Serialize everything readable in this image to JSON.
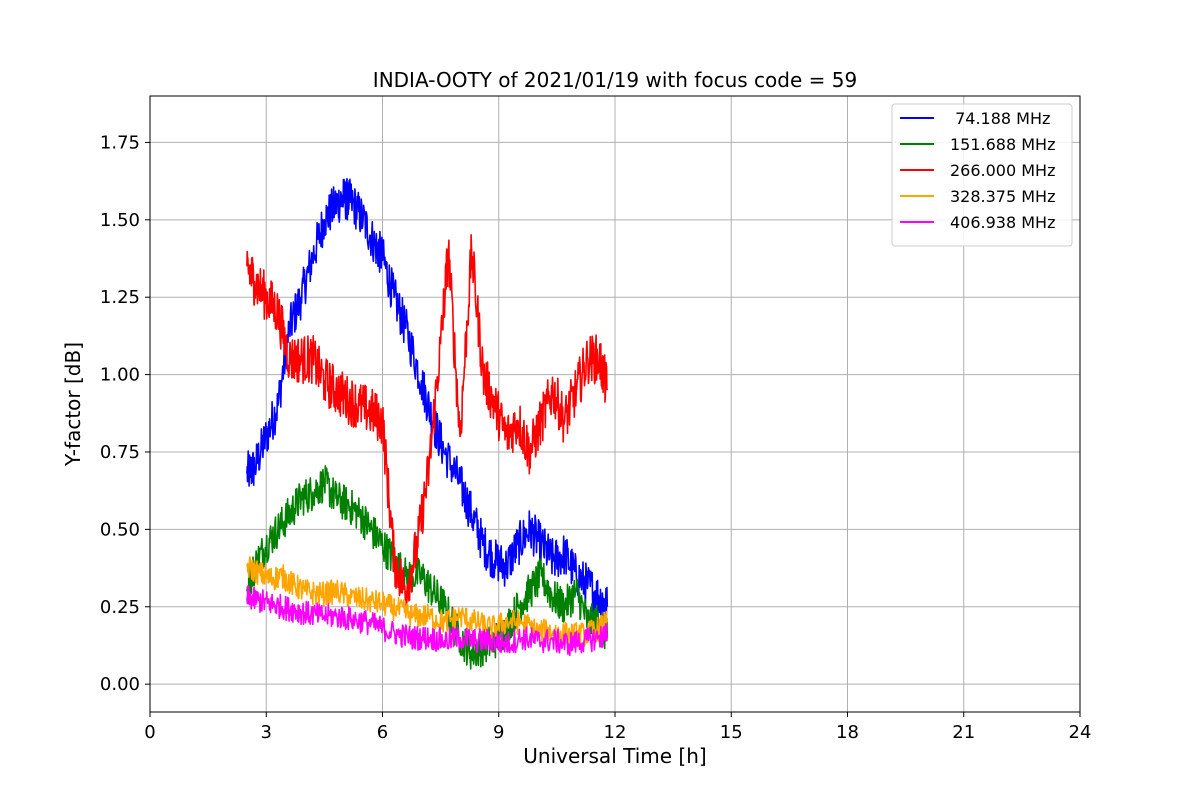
{
  "chart_data": {
    "type": "line",
    "title": "INDIA-OOTY of 2021/01/19 with focus code = 59",
    "xlabel": "Universal Time [h]",
    "ylabel": "Y-factor [dB]",
    "xlim": [
      0,
      24
    ],
    "ylim": [
      -0.09,
      1.9
    ],
    "x_ticks": [
      0,
      3,
      6,
      9,
      12,
      15,
      18,
      21,
      24
    ],
    "x_tick_labels": [
      "0",
      "3",
      "6",
      "9",
      "12",
      "15",
      "18",
      "21",
      "24"
    ],
    "y_ticks": [
      0.0,
      0.25,
      0.5,
      0.75,
      1.0,
      1.25,
      1.5,
      1.75
    ],
    "y_tick_labels": [
      "0.00",
      "0.25",
      "0.50",
      "0.75",
      "1.00",
      "1.25",
      "1.50",
      "1.75"
    ],
    "grid": true,
    "legend_position": "top-right",
    "series": [
      {
        "name": " 74.188 MHz",
        "color": "#0000ff",
        "x": [
          2.5,
          2.7,
          3.0,
          3.3,
          3.6,
          3.9,
          4.2,
          4.5,
          4.8,
          5.0,
          5.2,
          5.5,
          5.8,
          6.0,
          6.3,
          6.6,
          7.0,
          7.3,
          7.6,
          8.0,
          8.3,
          8.6,
          8.9,
          9.2,
          9.5,
          9.8,
          10.1,
          10.4,
          10.7,
          11.0,
          11.3,
          11.6,
          11.8
        ],
        "y": [
          0.68,
          0.7,
          0.8,
          0.9,
          1.15,
          1.25,
          1.38,
          1.5,
          1.55,
          1.57,
          1.56,
          1.5,
          1.42,
          1.38,
          1.25,
          1.15,
          0.98,
          0.85,
          0.75,
          0.65,
          0.55,
          0.45,
          0.4,
          0.38,
          0.45,
          0.5,
          0.45,
          0.4,
          0.42,
          0.35,
          0.32,
          0.28,
          0.25
        ]
      },
      {
        "name": "151.688 MHz",
        "color": "#008000",
        "x": [
          2.5,
          2.7,
          3.0,
          3.3,
          3.6,
          3.9,
          4.2,
          4.5,
          4.8,
          5.1,
          5.4,
          5.7,
          6.0,
          6.3,
          6.6,
          7.0,
          7.3,
          7.6,
          8.0,
          8.3,
          8.6,
          8.9,
          9.2,
          9.5,
          9.8,
          10.1,
          10.4,
          10.7,
          11.0,
          11.3,
          11.6,
          11.8
        ],
        "y": [
          0.3,
          0.38,
          0.45,
          0.5,
          0.55,
          0.6,
          0.62,
          0.65,
          0.6,
          0.58,
          0.55,
          0.5,
          0.45,
          0.4,
          0.35,
          0.35,
          0.3,
          0.25,
          0.15,
          0.1,
          0.12,
          0.14,
          0.18,
          0.25,
          0.3,
          0.35,
          0.28,
          0.25,
          0.3,
          0.2,
          0.2,
          0.15
        ]
      },
      {
        "name": "266.000 MHz",
        "color": "#ff0000",
        "x": [
          2.5,
          2.7,
          3.0,
          3.3,
          3.6,
          3.9,
          4.2,
          4.5,
          4.8,
          5.1,
          5.4,
          5.7,
          6.0,
          6.3,
          6.6,
          6.9,
          7.2,
          7.5,
          7.7,
          8.0,
          8.3,
          8.6,
          8.9,
          9.2,
          9.5,
          9.8,
          10.1,
          10.4,
          10.7,
          11.0,
          11.3,
          11.6,
          11.8
        ],
        "y": [
          1.35,
          1.3,
          1.25,
          1.2,
          1.05,
          1.05,
          1.05,
          0.98,
          0.95,
          0.92,
          0.9,
          0.88,
          0.85,
          0.4,
          0.3,
          0.45,
          0.7,
          1.1,
          1.4,
          0.8,
          1.4,
          1.0,
          0.9,
          0.8,
          0.85,
          0.75,
          0.85,
          0.95,
          0.85,
          0.95,
          1.05,
          1.05,
          0.95
        ]
      },
      {
        "name": "328.375 MHz",
        "color": "#ffa500",
        "x": [
          2.5,
          2.8,
          3.1,
          3.4,
          3.7,
          4.0,
          4.4,
          4.8,
          5.2,
          5.6,
          6.0,
          6.4,
          6.8,
          7.2,
          7.6,
          8.0,
          8.4,
          8.8,
          9.2,
          9.6,
          10.0,
          10.4,
          10.8,
          11.2,
          11.6,
          11.8
        ],
        "y": [
          0.38,
          0.36,
          0.34,
          0.35,
          0.32,
          0.3,
          0.29,
          0.3,
          0.28,
          0.27,
          0.26,
          0.24,
          0.22,
          0.22,
          0.2,
          0.22,
          0.2,
          0.18,
          0.2,
          0.2,
          0.17,
          0.17,
          0.16,
          0.16,
          0.18,
          0.2
        ]
      },
      {
        "name": "406.938 MHz",
        "color": "#ff00ff",
        "x": [
          2.5,
          2.8,
          3.1,
          3.4,
          3.7,
          4.0,
          4.4,
          4.8,
          5.2,
          5.6,
          6.0,
          6.4,
          6.8,
          7.2,
          7.6,
          8.0,
          8.4,
          8.8,
          9.2,
          9.6,
          10.0,
          10.4,
          10.8,
          11.2,
          11.6,
          11.8
        ],
        "y": [
          0.28,
          0.27,
          0.26,
          0.25,
          0.24,
          0.23,
          0.22,
          0.22,
          0.21,
          0.2,
          0.18,
          0.16,
          0.15,
          0.15,
          0.14,
          0.15,
          0.14,
          0.14,
          0.13,
          0.15,
          0.14,
          0.14,
          0.13,
          0.14,
          0.15,
          0.16
        ]
      }
    ]
  }
}
